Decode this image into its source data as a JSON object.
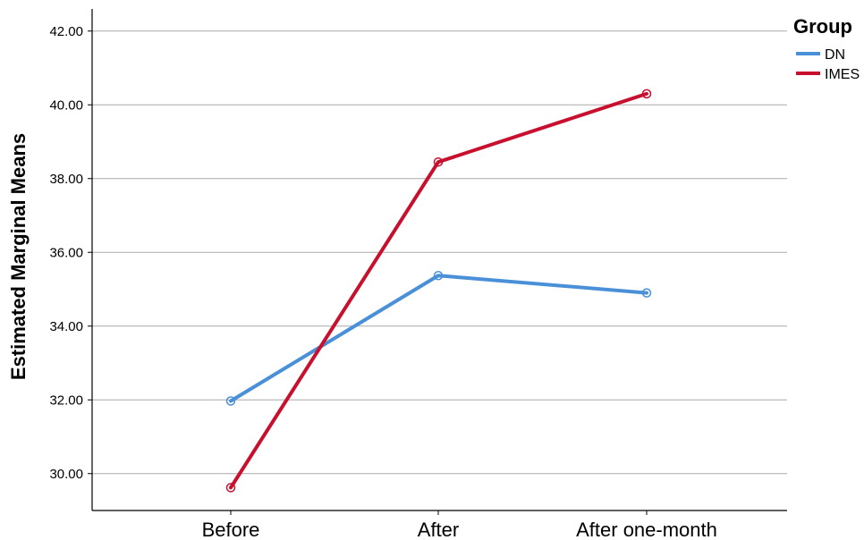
{
  "chart_data": {
    "type": "line",
    "title": "",
    "xlabel": "",
    "ylabel": "Estimated Marginal Means",
    "categories": [
      "Before",
      "After",
      "After one-month"
    ],
    "ylim": [
      29.0,
      42.6
    ],
    "yticks": [
      30.0,
      32.0,
      34.0,
      36.0,
      38.0,
      40.0,
      42.0
    ],
    "ytick_labels": [
      "30.00",
      "32.00",
      "34.00",
      "36.00",
      "38.00",
      "40.00",
      "42.00"
    ],
    "grid": true,
    "legend_title": "Group",
    "legend_position": "top-right",
    "series": [
      {
        "name": "DN",
        "values": [
          31.97,
          35.37,
          34.9
        ],
        "color": "#4a90d9"
      },
      {
        "name": "IMES",
        "values": [
          29.62,
          38.45,
          40.3
        ],
        "color": "#c8102e"
      }
    ]
  }
}
